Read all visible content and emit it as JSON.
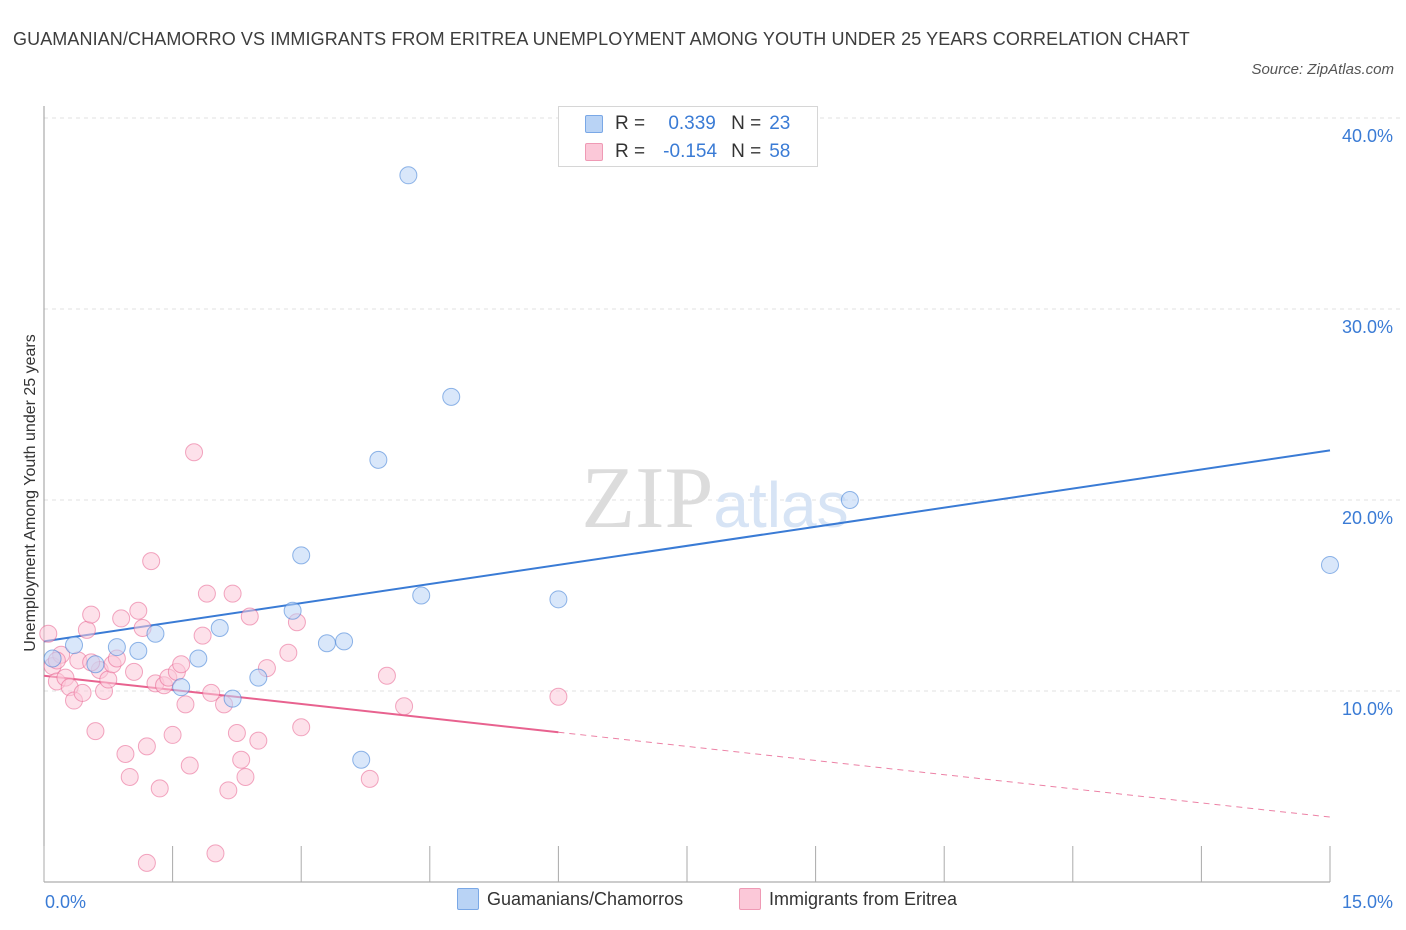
{
  "chart_data": {
    "type": "scatter",
    "title": "GUAMANIAN/CHAMORRO VS IMMIGRANTS FROM ERITREA UNEMPLOYMENT AMONG YOUTH UNDER 25 YEARS CORRELATION CHART",
    "source": "Source: ZipAtlas.com",
    "xlabel": "",
    "ylabel": "Unemployment Among Youth under 25 years",
    "xlim": [
      0,
      15
    ],
    "ylim": [
      0,
      40
    ],
    "x_tick_labels": {
      "min": "0.0%",
      "max": "15.0%"
    },
    "y_ticks": [
      10,
      20,
      30,
      40
    ],
    "y_tick_labels": [
      "10.0%",
      "20.0%",
      "30.0%",
      "40.0%"
    ],
    "watermark": "ZIPatlas",
    "colors": {
      "blue": "#3a7bd5",
      "pink": "#e8628f",
      "blue_fill": "#b9d3f5",
      "pink_fill": "#fbc8d8"
    },
    "legend": [
      {
        "r_label": "R =",
        "r_value": "0.339",
        "n_label": "N =",
        "n_value": "23"
      },
      {
        "r_label": "R =",
        "r_value": "-0.154",
        "n_label": "N =",
        "n_value": "58"
      }
    ],
    "series": [
      {
        "name": "Guamanians/Chamorros",
        "color": "#3a7bd5",
        "trend": {
          "x0": 0,
          "y0": 12.6,
          "x1": 15,
          "y1": 22.6,
          "dashed_from": null
        },
        "points": [
          [
            0.1,
            11.7
          ],
          [
            0.35,
            12.4
          ],
          [
            0.6,
            11.4
          ],
          [
            0.85,
            12.3
          ],
          [
            1.1,
            12.1
          ],
          [
            1.3,
            13.0
          ],
          [
            1.6,
            10.2
          ],
          [
            1.8,
            11.7
          ],
          [
            2.05,
            13.3
          ],
          [
            2.2,
            9.6
          ],
          [
            2.5,
            10.7
          ],
          [
            2.9,
            14.2
          ],
          [
            3.0,
            17.1
          ],
          [
            3.3,
            12.5
          ],
          [
            3.5,
            12.6
          ],
          [
            3.7,
            6.4
          ],
          [
            3.9,
            22.1
          ],
          [
            4.25,
            37.0
          ],
          [
            4.4,
            15.0
          ],
          [
            4.75,
            25.4
          ],
          [
            6.0,
            14.8
          ],
          [
            9.4,
            20.0
          ],
          [
            15.0,
            16.6
          ]
        ]
      },
      {
        "name": "Immigrants from Eritrea",
        "color": "#e8628f",
        "trend": {
          "x0": 0,
          "y0": 10.8,
          "x1": 15,
          "y1": 3.4,
          "dashed_from": 6.0
        },
        "points": [
          [
            0.05,
            13.0
          ],
          [
            0.1,
            11.3
          ],
          [
            0.15,
            10.5
          ],
          [
            0.2,
            11.9
          ],
          [
            0.25,
            10.7
          ],
          [
            0.3,
            10.2
          ],
          [
            0.35,
            9.5
          ],
          [
            0.4,
            11.6
          ],
          [
            0.45,
            9.9
          ],
          [
            0.5,
            13.2
          ],
          [
            0.55,
            14.0
          ],
          [
            0.6,
            7.9
          ],
          [
            0.65,
            11.1
          ],
          [
            0.7,
            10.0
          ],
          [
            0.75,
            10.6
          ],
          [
            0.8,
            11.4
          ],
          [
            0.85,
            11.7
          ],
          [
            0.9,
            13.8
          ],
          [
            0.95,
            6.7
          ],
          [
            1.0,
            5.5
          ],
          [
            1.05,
            11.0
          ],
          [
            1.1,
            14.2
          ],
          [
            1.15,
            13.3
          ],
          [
            1.2,
            7.1
          ],
          [
            1.25,
            16.8
          ],
          [
            1.3,
            10.4
          ],
          [
            1.35,
            4.9
          ],
          [
            1.4,
            10.3
          ],
          [
            1.45,
            10.7
          ],
          [
            1.5,
            7.7
          ],
          [
            1.55,
            11.0
          ],
          [
            1.6,
            11.4
          ],
          [
            1.65,
            9.3
          ],
          [
            1.7,
            6.1
          ],
          [
            1.75,
            22.5
          ],
          [
            1.85,
            12.9
          ],
          [
            1.9,
            15.1
          ],
          [
            1.95,
            9.9
          ],
          [
            2.0,
            1.5
          ],
          [
            2.1,
            9.3
          ],
          [
            2.15,
            4.8
          ],
          [
            2.2,
            15.1
          ],
          [
            2.25,
            7.8
          ],
          [
            2.3,
            6.4
          ],
          [
            2.35,
            5.5
          ],
          [
            2.4,
            13.9
          ],
          [
            2.5,
            7.4
          ],
          [
            2.6,
            11.2
          ],
          [
            2.85,
            12.0
          ],
          [
            3.0,
            8.1
          ],
          [
            3.8,
            5.4
          ],
          [
            4.0,
            10.8
          ],
          [
            4.2,
            9.2
          ],
          [
            1.2,
            1.0
          ],
          [
            2.95,
            13.6
          ],
          [
            6.0,
            9.7
          ],
          [
            0.15,
            11.6
          ],
          [
            0.55,
            11.5
          ]
        ]
      }
    ]
  }
}
